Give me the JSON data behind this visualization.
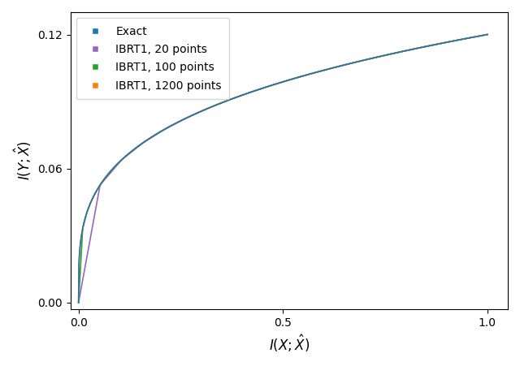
{
  "xlabel": "$I(X; \\hat{X})$",
  "ylabel": "$I(Y; \\hat{X})$",
  "xlim": [
    -0.02,
    1.05
  ],
  "ylim": [
    -0.003,
    0.13
  ],
  "yticks": [
    0.0,
    0.06,
    0.12
  ],
  "xticks": [
    0.0,
    0.5,
    1.0
  ],
  "legend_entries": [
    "Exact",
    "IBRT1, 20 points",
    "IBRT1, 100 points",
    "IBRT1, 1200 points"
  ],
  "colors": [
    "#1f77b4",
    "#9467bd",
    "#2ca02c",
    "#ff7f0e"
  ],
  "n_points": [
    1000,
    20,
    100,
    1200
  ],
  "curve_max_x": 1.0,
  "curve_max_y": 0.12,
  "curve_exponent": 0.28,
  "line_width": 1.2,
  "legend_loc": "upper left",
  "markersize": 6
}
